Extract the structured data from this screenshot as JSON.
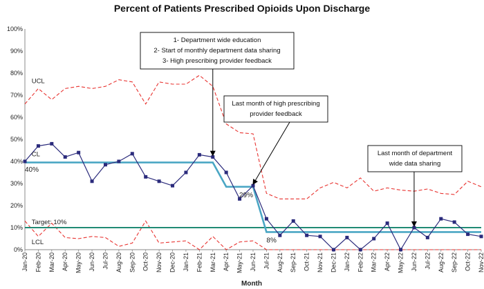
{
  "chart_data": {
    "type": "line",
    "title": "Percent of Patients Prescribed Opioids Upon Discharge",
    "xlabel": "Month",
    "ylabel": "",
    "ylim": [
      0,
      100
    ],
    "yticks": [
      "0%",
      "10%",
      "20%",
      "30%",
      "40%",
      "50%",
      "60%",
      "70%",
      "80%",
      "90%",
      "100%"
    ],
    "yticks_values": [
      0,
      10,
      20,
      30,
      40,
      50,
      60,
      70,
      80,
      90,
      100
    ],
    "categories": [
      "Jan-20",
      "Feb-20",
      "Mar-20",
      "Apr-20",
      "May-20",
      "Jun-20",
      "Jul-20",
      "Aug-20",
      "Sep-20",
      "Oct-20",
      "Nov-20",
      "Dec-20",
      "Jan-21",
      "Feb-21",
      "Mar-21",
      "Apr-21",
      "May-21",
      "Jun-21",
      "Jul-21",
      "Aug-21",
      "Sep-21",
      "Oct-21",
      "Nov-21",
      "Dec-21",
      "Jan-22",
      "Feb-22",
      "Mar-22",
      "Apr-22",
      "May-22",
      "Jun-22",
      "Jul-22",
      "Aug-22",
      "Sep-22",
      "Oct-22",
      "Nov-22"
    ],
    "series": [
      {
        "name": "Percent",
        "color": "#2b2b7c",
        "values": [
          40,
          47,
          48,
          42,
          44,
          31,
          38.5,
          40,
          43.5,
          33,
          31,
          29,
          35,
          43,
          42,
          35,
          23,
          29,
          14,
          6.5,
          13,
          6.5,
          6,
          0,
          5.5,
          0,
          5,
          12,
          0,
          10,
          5.5,
          14,
          12.5,
          7,
          6
        ]
      },
      {
        "name": "CL",
        "color": "#4aa6c4",
        "values": [
          39.5,
          39.5,
          39.5,
          39.5,
          39.5,
          39.5,
          39.5,
          39.5,
          39.5,
          39.5,
          39.5,
          39.5,
          39.5,
          39.5,
          39.5,
          28.5,
          28.5,
          28.5,
          8,
          8,
          8,
          8,
          8,
          8,
          8,
          8,
          8,
          8,
          8,
          8,
          8,
          8,
          8,
          8,
          8
        ]
      },
      {
        "name": "UCL",
        "color": "#e8322f",
        "values": [
          66,
          73,
          68,
          73,
          74,
          73,
          74,
          77,
          76,
          66,
          76,
          75,
          75,
          79,
          74,
          57,
          53,
          52.5,
          25.5,
          23,
          23,
          23,
          28,
          30.5,
          28,
          32.5,
          26.5,
          28,
          27,
          26.5,
          27.5,
          25.5,
          25,
          31,
          28.5
        ]
      },
      {
        "name": "LCL",
        "color": "#e8322f",
        "values": [
          13,
          6,
          12,
          5.5,
          5,
          6,
          5.5,
          1.5,
          3,
          13,
          3,
          3.5,
          4,
          0,
          6,
          0,
          3.5,
          4,
          0,
          0,
          0,
          0,
          0,
          0,
          0,
          0,
          0,
          0,
          0,
          0,
          0,
          0,
          0,
          0,
          0
        ]
      },
      {
        "name": "Target: 10%",
        "color": "#1f8a74",
        "values": [
          10,
          10,
          10,
          10,
          10,
          10,
          10,
          10,
          10,
          10,
          10,
          10,
          10,
          10,
          10,
          10,
          10,
          10,
          10,
          10,
          10,
          10,
          10,
          10,
          10,
          10,
          10,
          10,
          10,
          10,
          10,
          10,
          10,
          10,
          10
        ]
      }
    ],
    "series_labels": {
      "ucl": "UCL",
      "cl": "CL",
      "lcl": "LCL",
      "target": "Target: 10%"
    },
    "data_labels": [
      {
        "index": 0,
        "value": 40,
        "text": "40%"
      },
      {
        "index": 17,
        "value": 28.5,
        "text": "29%"
      },
      {
        "index": 18,
        "value": 8,
        "text": "8%"
      }
    ],
    "annotations": [
      {
        "lines": [
          "1- Department wide education",
          "2- Start of monthly department data sharing",
          "3- High prescribing provider feedback"
        ],
        "target_index": 14,
        "target_value": 42
      },
      {
        "lines": [
          "Last month of high prescribing",
          "provider feedback"
        ],
        "target_index": 17,
        "target_value": 29
      },
      {
        "lines": [
          "Last month of department",
          "wide data sharing"
        ],
        "target_index": 29,
        "target_value": 10
      }
    ],
    "grid": false,
    "legend": "inline"
  }
}
